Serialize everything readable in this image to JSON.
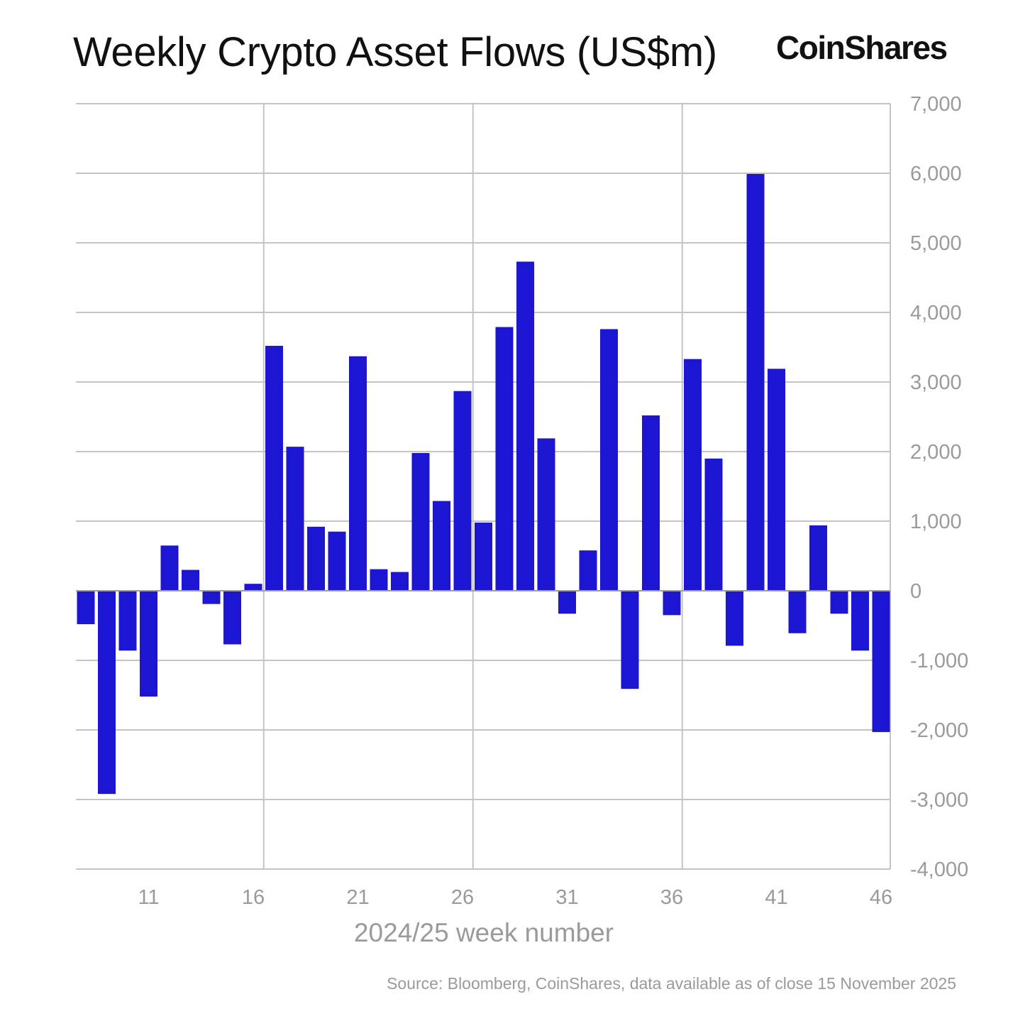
{
  "header": {
    "title": "Weekly Crypto Asset Flows (US$m)",
    "brand": "CoinShares"
  },
  "footer": {
    "source": "Source: Bloomberg, CoinShares, data available as of close 15 November 2025"
  },
  "colors": {
    "bar": "#1c16d2",
    "grid": "#c4c4c4",
    "text_muted": "#9a9a9a"
  },
  "chart_data": {
    "type": "bar",
    "title": "Weekly Crypto Asset Flows (US$m)",
    "xlabel": "2024/25 week number",
    "ylabel": "",
    "ylim": [
      -4000,
      7000
    ],
    "y_ticks": [
      -4000,
      -3000,
      -2000,
      -1000,
      0,
      1000,
      2000,
      3000,
      4000,
      5000,
      6000,
      7000
    ],
    "y_tick_labels": [
      "-4,000",
      "-3,000",
      "-2,000",
      "-1,000",
      "0",
      "1,000",
      "2,000",
      "3,000",
      "4,000",
      "5,000",
      "6,000",
      "7,000"
    ],
    "x_tick_labels": [
      "11",
      "16",
      "21",
      "26",
      "31",
      "36",
      "41",
      "46"
    ],
    "y_axis_position": "right",
    "grid": true,
    "categories": [
      "8",
      "9",
      "10",
      "11",
      "12",
      "13",
      "14",
      "15",
      "16",
      "17",
      "18",
      "19",
      "20",
      "21",
      "22",
      "23",
      "24",
      "25",
      "26",
      "27",
      "28",
      "29",
      "30",
      "31",
      "32",
      "33",
      "34",
      "35",
      "36",
      "37",
      "38",
      "39",
      "40",
      "41",
      "42",
      "43",
      "44",
      "45",
      "46"
    ],
    "values": [
      -480,
      -2920,
      -860,
      -1520,
      650,
      300,
      -190,
      -770,
      100,
      3520,
      2070,
      920,
      850,
      3370,
      310,
      270,
      1980,
      1290,
      2870,
      980,
      3790,
      4730,
      2190,
      -330,
      580,
      3760,
      -1410,
      2520,
      -350,
      3330,
      1900,
      -790,
      5990,
      3190,
      -610,
      940,
      -330,
      -860,
      -2030
    ]
  }
}
